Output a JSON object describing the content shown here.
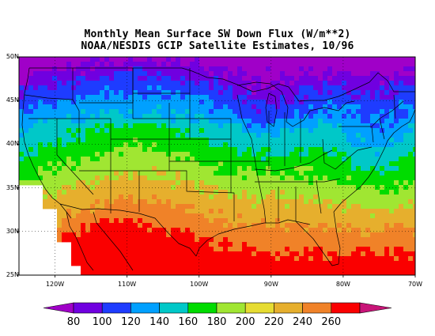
{
  "title": {
    "line1": "Monthly Mean Surface SW Down Flux (W/m**2)",
    "line2": "NOAA/NESDIS GCIP Satellite Estimates, 10/96"
  },
  "axes": {
    "y_labels": [
      {
        "lat": 50,
        "text": "50N"
      },
      {
        "lat": 45,
        "text": "45N"
      },
      {
        "lat": 40,
        "text": "40N"
      },
      {
        "lat": 35,
        "text": "35N"
      },
      {
        "lat": 30,
        "text": "30N"
      },
      {
        "lat": 25,
        "text": "25N"
      }
    ],
    "x_labels": [
      {
        "lon": -120,
        "text": "120W"
      },
      {
        "lon": -110,
        "text": "110W"
      },
      {
        "lon": -100,
        "text": "100W"
      },
      {
        "lon": -90,
        "text": "90W"
      },
      {
        "lon": -80,
        "text": "80W"
      },
      {
        "lon": -70,
        "text": "70W"
      }
    ],
    "lon_range": [
      -125,
      -70
    ],
    "lat_range": [
      25,
      50
    ]
  },
  "colorbar": {
    "labels": [
      "80",
      "100",
      "120",
      "140",
      "160",
      "180",
      "200",
      "220",
      "240",
      "260"
    ],
    "colors": [
      "#a000c8",
      "#7000e0",
      "#1e3cff",
      "#00a0ff",
      "#00c8c8",
      "#00dc00",
      "#a0e632",
      "#e6dc32",
      "#e6af2d",
      "#f08228",
      "#fa0000",
      "#c81478"
    ]
  },
  "bands": [
    {
      "color": "#a000c8",
      "min": 80
    },
    {
      "color": "#7000e0",
      "min": 100
    },
    {
      "color": "#1e3cff",
      "min": 110
    },
    {
      "color": "#00a0ff",
      "min": 125
    },
    {
      "color": "#00c8c8",
      "min": 140
    },
    {
      "color": "#00dc00",
      "min": 160
    },
    {
      "color": "#a0e632",
      "min": 180
    },
    {
      "color": "#e6af2d",
      "min": 200
    },
    {
      "color": "#f08228",
      "min": 220
    },
    {
      "color": "#fa0000",
      "min": 240
    }
  ]
}
